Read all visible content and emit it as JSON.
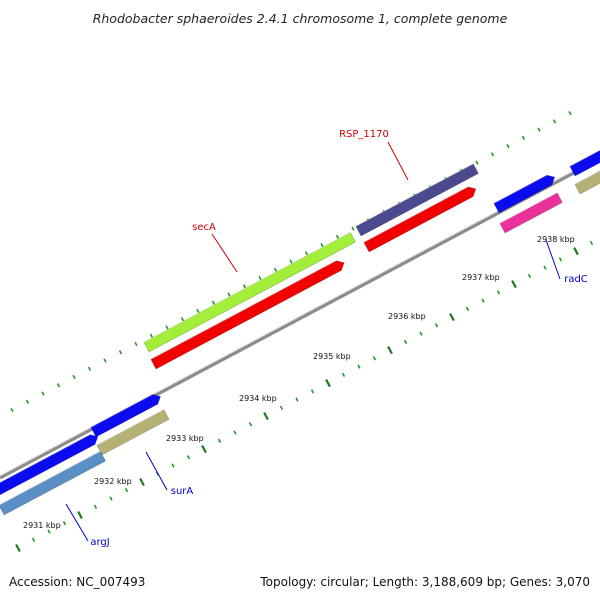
{
  "title": "Rhodobacter sphaeroides 2.4.1 chromosome 1, complete genome",
  "footer": {
    "accession": "Accession: NC_007493",
    "summary": "Topology: circular; Length: 3,188,609 bp; Genes: 3,070"
  },
  "colors": {
    "backbone": "#8c8c8c",
    "major_tick": "#1e7a1e",
    "minor_tick": "#229922",
    "forward_label": "#cc0000",
    "reverse_label": "#0000cc",
    "callout_forward": "#cc0000",
    "callout_reverse": "#0000cc"
  },
  "axis": {
    "unit": "kbp",
    "major_ticks": [
      2931,
      2932,
      2933,
      2934,
      2935,
      2936,
      2937,
      2938
    ],
    "major_tick_labels": [
      "2931 kbp",
      "2932 kbp",
      "2933 kbp",
      "2934 kbp",
      "2935 kbp",
      "2936 kbp",
      "2937 kbp",
      "2938 kbp"
    ]
  },
  "gene_labels": [
    {
      "name": "RSP_1170",
      "strand": "forward"
    },
    {
      "name": "secA",
      "strand": "forward"
    },
    {
      "name": "radC",
      "strand": "reverse"
    },
    {
      "name": "surA",
      "strand": "reverse"
    },
    {
      "name": "argJ",
      "strand": "reverse"
    }
  ],
  "features": [
    {
      "id": "rsp1170-bar",
      "color": "#4b4a8f",
      "side": "bar"
    },
    {
      "id": "secA-bar",
      "color": "#a3ee38",
      "side": "bar"
    },
    {
      "id": "cds-upper-right",
      "color": "#0b0bf0",
      "side": "arrow"
    },
    {
      "id": "cds-left-upper",
      "color": "#0b0bf0",
      "side": "arrow"
    },
    {
      "id": "cds-left-lower",
      "color": "#0b0bf0",
      "side": "arrow"
    },
    {
      "id": "rsp1170-cds",
      "color": "#f00000",
      "side": "arrow"
    },
    {
      "id": "secA-cds",
      "color": "#f00000",
      "side": "arrow"
    },
    {
      "id": "radC-bar",
      "color": "#e8319b",
      "side": "bar"
    },
    {
      "id": "surA-bar",
      "color": "#b5b073",
      "side": "bar"
    },
    {
      "id": "argJ-bar",
      "color": "#5a8fc6",
      "side": "bar"
    },
    {
      "id": "right-edge-bar",
      "color": "#b5b073",
      "side": "bar"
    }
  ]
}
